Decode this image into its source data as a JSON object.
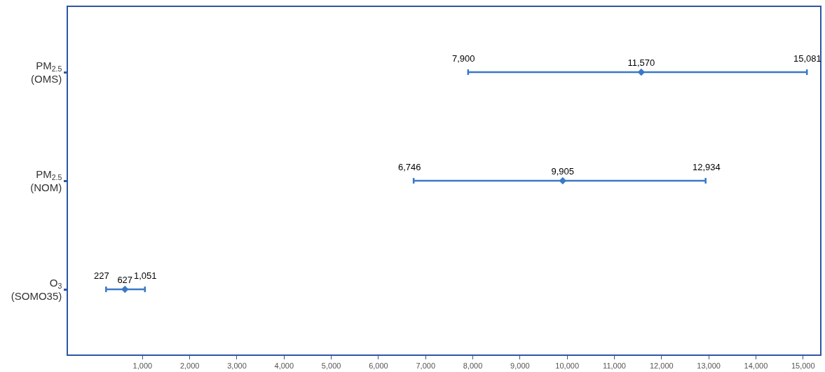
{
  "chart_data": {
    "type": "scatter",
    "orientation": "horizontal",
    "categories": [
      "PM$_{2.5}$\n(OMS)",
      "PM$_{2.5}$\n(NOM)",
      "O$_{3}$\n(SOMO35)"
    ],
    "series": [
      {
        "color": "#3a78c8",
        "values": [
          11570,
          9905,
          627
        ],
        "errors": [
          [
            7900,
            15081
          ],
          [
            6746,
            12934
          ],
          [
            227,
            1051
          ]
        ],
        "value_labels": [
          "11,570",
          "9,905",
          "627"
        ]
      }
    ],
    "annotations": [
      "7,900",
      "15,081",
      "6,746",
      "12,934",
      "227",
      "1,051"
    ],
    "xlim": [
      -580,
      15360
    ],
    "xticks": [
      {
        "value": 1000,
        "label": "1,000"
      },
      {
        "value": 2000,
        "label": "2,000"
      },
      {
        "value": 3000,
        "label": "3,000"
      },
      {
        "value": 4000,
        "label": "4,000"
      },
      {
        "value": 5000,
        "label": "5,000"
      },
      {
        "value": 6000,
        "label": "6,000"
      },
      {
        "value": 7000,
        "label": "7,000"
      },
      {
        "value": 8000,
        "label": "8,000"
      },
      {
        "value": 9000,
        "label": "9,000"
      },
      {
        "value": 10000,
        "label": "10,000"
      },
      {
        "value": 11000,
        "label": "11,000"
      },
      {
        "value": 12000,
        "label": "12,000"
      },
      {
        "value": 13000,
        "label": "13,000"
      },
      {
        "value": 14000,
        "label": "14,000"
      },
      {
        "value": 15000,
        "label": "15,000"
      }
    ],
    "marker": "diamond",
    "grid": false
  }
}
